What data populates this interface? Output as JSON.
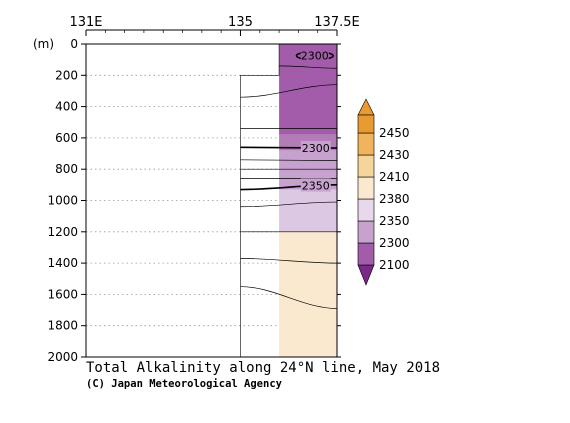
{
  "chart_data": {
    "type": "heatmap",
    "title": "Total Alkalinity along 24°N line, May 2018",
    "credit": "(C) Japan Meteorological Agency",
    "x_axis": {
      "ticks": [
        {
          "label": "131E",
          "value": 131
        },
        {
          "label": "135",
          "value": 135
        },
        {
          "label": "137.5E",
          "value": 137.5
        }
      ],
      "range": [
        131,
        137.5
      ],
      "position": "top"
    },
    "y_axis": {
      "label": "(m)",
      "ticks": [
        0,
        200,
        400,
        600,
        800,
        1000,
        1200,
        1400,
        1600,
        1800,
        2000
      ],
      "range": [
        0,
        2000
      ],
      "inverted": true,
      "grid": "dotted"
    },
    "data_extent": {
      "shallow_from_lon": 136,
      "shallow_to_depth": 200,
      "deep_from_lon": 135,
      "deep_to_depth": 2000
    },
    "bands": [
      {
        "from_depth": 0,
        "to_depth": 580,
        "color": "#a35ca9"
      },
      {
        "from_depth": 580,
        "to_depth": 680,
        "color": "#b27cb8"
      },
      {
        "from_depth": 680,
        "to_depth": 930,
        "color": "#c8a2cf"
      },
      {
        "from_depth": 930,
        "to_depth": 1200,
        "color": "#ddc8e3"
      },
      {
        "from_depth": 1200,
        "to_depth": 2000,
        "color": "#fbe9cf"
      }
    ],
    "contours": [
      {
        "level": 2300,
        "depths_left": 75,
        "depths_right": 75,
        "labeled": true,
        "closed": true,
        "lon_range": [
          136.45,
          137.4
        ]
      },
      {
        "level": "",
        "depths_left": 140,
        "depths_right": 155,
        "labeled": false
      },
      {
        "level": "",
        "depths_left": 340,
        "depths_right": 260,
        "labeled": false
      },
      {
        "level": "",
        "depths_left": 540,
        "depths_right": 540,
        "labeled": false
      },
      {
        "level": 2300,
        "depths_left": 660,
        "depths_right": 665,
        "labeled": true
      },
      {
        "level": "",
        "depths_left": 740,
        "depths_right": 745,
        "labeled": false
      },
      {
        "level": "",
        "depths_left": 800,
        "depths_right": 800,
        "labeled": false
      },
      {
        "level": "",
        "depths_left": 860,
        "depths_right": 860,
        "labeled": false
      },
      {
        "level": 2350,
        "depths_left": 930,
        "depths_right": 900,
        "labeled": true
      },
      {
        "level": "",
        "depths_left": 1040,
        "depths_right": 1010,
        "labeled": false
      },
      {
        "level": "",
        "depths_left": 1200,
        "depths_right": 1200,
        "labeled": false
      },
      {
        "level": "",
        "depths_left": 1370,
        "depths_right": 1400,
        "labeled": false
      },
      {
        "level": "",
        "depths_left": 1550,
        "depths_right": 1690,
        "labeled": false
      }
    ],
    "legend": {
      "levels": [
        "2100",
        "2300",
        "2350",
        "2380",
        "2410",
        "2430",
        "2450"
      ],
      "colors": [
        "#7a2a86",
        "#a35ca9",
        "#c8a2cf",
        "#e8d8ec",
        "#fbe9cf",
        "#f6d59c",
        "#f0b55c",
        "#e89b30"
      ],
      "placement": "right",
      "extend": "both"
    }
  }
}
